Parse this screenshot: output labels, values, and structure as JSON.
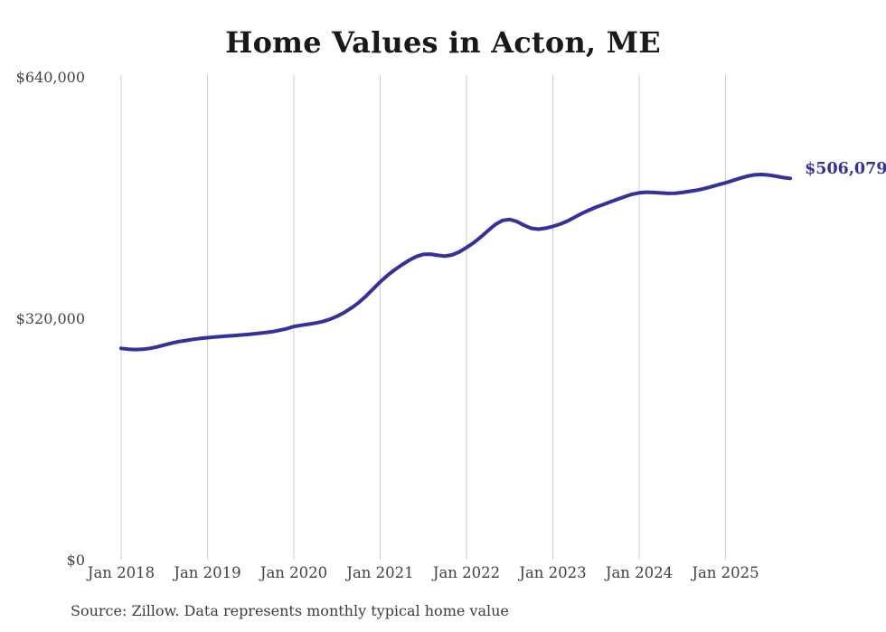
{
  "chart": {
    "title": "Home Values in Acton, ME",
    "latest_value_label": "$506,079",
    "source": "Source: Zillow. Data represents monthly typical home value",
    "colors": {
      "line": "#34309e",
      "gridline": "#cccccc",
      "tick_text": "#424242",
      "title_text": "#191919"
    }
  },
  "chart_data": {
    "type": "line",
    "title": "Home Values in Acton, ME",
    "xlabel": "",
    "ylabel": "",
    "frequency": "monthly",
    "start_month": "Jan 2018",
    "end_month": "Oct 2025",
    "x_tick_labels": [
      "Jan 2018",
      "Jan 2019",
      "Jan 2020",
      "Jan 2021",
      "Jan 2022",
      "Jan 2023",
      "Jan 2024",
      "Jan 2025"
    ],
    "y_ticks": [
      {
        "label": "$640,000",
        "value": 640000
      },
      {
        "label": "$320,000",
        "value": 320000
      },
      {
        "label": "$0",
        "value": 0
      }
    ],
    "ylim": [
      0,
      640000
    ],
    "grid": "vertical-only",
    "legend_position": "none",
    "annotation": {
      "text": "$506,079",
      "value": 506079,
      "position": "line-end"
    },
    "series": [
      {
        "name": "Typical home value",
        "values": [
          281000,
          280000,
          279500,
          279800,
          281000,
          283000,
          285500,
          287800,
          290000,
          291500,
          293000,
          294200,
          295200,
          296000,
          296800,
          297500,
          298200,
          299000,
          299800,
          300800,
          301800,
          303000,
          305000,
          307000,
          310000,
          311500,
          313000,
          314500,
          316500,
          319500,
          323500,
          328500,
          334500,
          341500,
          350000,
          359500,
          369000,
          377500,
          385000,
          391500,
          397500,
          402500,
          405500,
          405800,
          404200,
          403200,
          404800,
          408800,
          414500,
          421000,
          428500,
          437000,
          445000,
          450500,
          451800,
          449000,
          444000,
          440000,
          438800,
          440200,
          442500,
          445500,
          449500,
          454500,
          459500,
          464000,
          468000,
          471500,
          475000,
          478500,
          482000,
          485000,
          487000,
          487800,
          487500,
          486800,
          486200,
          486500,
          487500,
          489000,
          490500,
          492500,
          495000,
          497800,
          500300,
          503300,
          506300,
          509000,
          510800,
          511300,
          510600,
          509000,
          507200,
          506079
        ]
      }
    ]
  }
}
